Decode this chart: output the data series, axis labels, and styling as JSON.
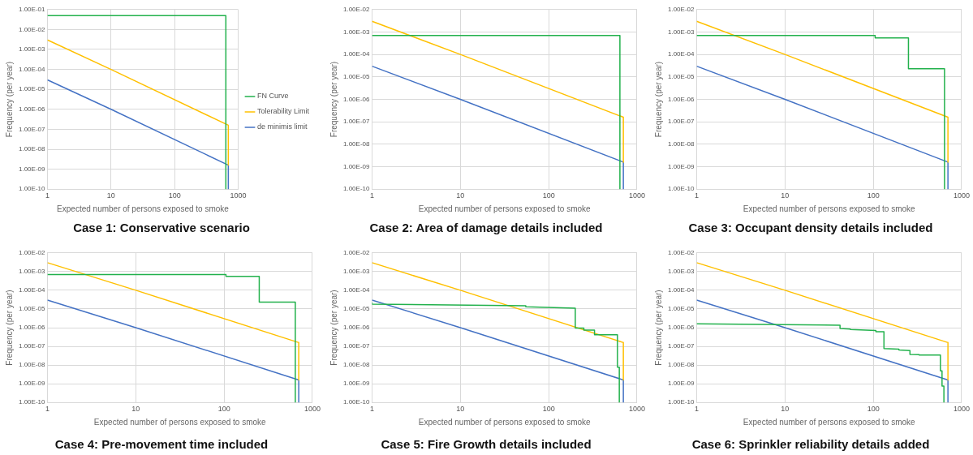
{
  "chart_data": [
    {
      "type": "line",
      "title": "Case 1: Conservative scenario",
      "xlabel": "Expected number of persons exposed to smoke",
      "ylabel": "Frequency (per year)",
      "log": "xy",
      "grid": true,
      "legend": "right",
      "marker": "none",
      "xlim": [
        1,
        1000
      ],
      "xticks": [
        1,
        10,
        100,
        1000
      ],
      "ylim": [
        1e-10,
        0.1
      ],
      "yticks": [
        {
          "value": 1e-10,
          "label": "1.00E-10"
        },
        {
          "value": 1e-09,
          "label": "1.00E-09"
        },
        {
          "value": 1e-08,
          "label": "1.00E-08"
        },
        {
          "value": 1e-07,
          "label": "1.00E-07"
        },
        {
          "value": 1e-06,
          "label": "1.00E-06"
        },
        {
          "value": 1e-05,
          "label": "1.00E-05"
        },
        {
          "value": 0.0001,
          "label": "1.00E-04"
        },
        {
          "value": 0.001,
          "label": "1.00E-03"
        },
        {
          "value": 0.01,
          "label": "1.00E-02"
        },
        {
          "value": 0.1,
          "label": "1.00E-01"
        }
      ],
      "series": [
        {
          "name": "FN Curve",
          "color": "#22b14c",
          "x": [
            1,
            640,
            640
          ],
          "values": [
            0.05,
            0.05,
            1e-10
          ]
        },
        {
          "name": "Tolerability Limit",
          "color": "#ffc000",
          "x": [
            1,
            10,
            700,
            700
          ],
          "values": [
            0.003,
            0.0001,
            1.6e-07,
            1.6e-09
          ]
        },
        {
          "name": "de minimis limit",
          "color": "#4472c4",
          "x": [
            1,
            10,
            700,
            700
          ],
          "values": [
            3e-05,
            1e-06,
            1.6e-09,
            1e-10
          ]
        }
      ]
    },
    {
      "type": "line",
      "title": "Case 2: Area of damage details included",
      "xlabel": "Expected number of persons exposed to smoke",
      "ylabel": "Frequency (per year)",
      "log": "xy",
      "grid": true,
      "marker": "none",
      "xlim": [
        1,
        1000
      ],
      "xticks": [
        1,
        10,
        100,
        1000
      ],
      "ylim": [
        1e-10,
        0.01
      ],
      "yticks": [
        {
          "value": 1e-10,
          "label": "1.00E-10"
        },
        {
          "value": 1e-09,
          "label": "1.00E-09"
        },
        {
          "value": 1e-08,
          "label": "1.00E-08"
        },
        {
          "value": 1e-07,
          "label": "1.00E-07"
        },
        {
          "value": 1e-06,
          "label": "1.00E-06"
        },
        {
          "value": 1e-05,
          "label": "1.00E-05"
        },
        {
          "value": 0.0001,
          "label": "1.00E-04"
        },
        {
          "value": 0.001,
          "label": "1.00E-03"
        },
        {
          "value": 0.01,
          "label": "1.00E-02"
        }
      ],
      "series": [
        {
          "color": "#22b14c",
          "x": [
            1,
            640,
            640
          ],
          "values": [
            0.0007,
            0.0007,
            1e-10
          ]
        },
        {
          "color": "#ffc000",
          "x": [
            1,
            10,
            700,
            700
          ],
          "values": [
            0.003,
            0.0001,
            1.6e-07,
            1.6e-09
          ]
        },
        {
          "color": "#4472c4",
          "x": [
            1,
            10,
            700,
            700
          ],
          "values": [
            3e-05,
            1e-06,
            1.6e-09,
            1e-10
          ]
        }
      ]
    },
    {
      "type": "line",
      "title": "Case 3: Occupant density details included",
      "xlabel": "Expected number of persons exposed to smoke",
      "ylabel": "Frequency (per year)",
      "log": "xy",
      "grid": true,
      "marker": "none",
      "xlim": [
        1,
        1000
      ],
      "xticks": [
        1,
        10,
        100,
        1000
      ],
      "ylim": [
        1e-10,
        0.01
      ],
      "yticks": [
        {
          "value": 1e-10,
          "label": "1.00E-10"
        },
        {
          "value": 1e-09,
          "label": "1.00E-09"
        },
        {
          "value": 1e-08,
          "label": "1.00E-08"
        },
        {
          "value": 1e-07,
          "label": "1.00E-07"
        },
        {
          "value": 1e-06,
          "label": "1.00E-06"
        },
        {
          "value": 1e-05,
          "label": "1.00E-05"
        },
        {
          "value": 0.0001,
          "label": "1.00E-04"
        },
        {
          "value": 0.001,
          "label": "1.00E-03"
        },
        {
          "value": 0.01,
          "label": "1.00E-02"
        }
      ],
      "series": [
        {
          "color": "#22b14c",
          "x": [
            1,
            105,
            105,
            250,
            250,
            640,
            640
          ],
          "values": [
            0.0007,
            0.0007,
            0.00055,
            0.00055,
            2.3e-05,
            2.3e-05,
            1e-10
          ]
        },
        {
          "color": "#ffc000",
          "x": [
            1,
            10,
            700,
            700
          ],
          "values": [
            0.003,
            0.0001,
            1.6e-07,
            1.6e-09
          ]
        },
        {
          "color": "#4472c4",
          "x": [
            1,
            10,
            700,
            700
          ],
          "values": [
            3e-05,
            1e-06,
            1.6e-09,
            1e-10
          ]
        }
      ]
    },
    {
      "type": "line",
      "title": "Case 4: Pre-movement time included",
      "xlabel": "Expected number of persons exposed to smoke",
      "ylabel": "Frequency (per year)",
      "log": "xy",
      "grid": true,
      "marker": "none",
      "xlim": [
        1,
        1000
      ],
      "xticks": [
        1,
        10,
        100,
        1000
      ],
      "ylim": [
        1e-10,
        0.01
      ],
      "yticks": [
        {
          "value": 1e-10,
          "label": "1.00E-10"
        },
        {
          "value": 1e-09,
          "label": "1.00E-09"
        },
        {
          "value": 1e-08,
          "label": "1.00E-08"
        },
        {
          "value": 1e-07,
          "label": "1.00E-07"
        },
        {
          "value": 1e-06,
          "label": "1.00E-06"
        },
        {
          "value": 1e-05,
          "label": "1.00E-05"
        },
        {
          "value": 0.0001,
          "label": "1.00E-04"
        },
        {
          "value": 0.001,
          "label": "1.00E-03"
        },
        {
          "value": 0.01,
          "label": "1.00E-02"
        }
      ],
      "series": [
        {
          "color": "#22b14c",
          "x": [
            1,
            105,
            105,
            250,
            250,
            640,
            640
          ],
          "values": [
            0.0007,
            0.0007,
            0.00055,
            0.00055,
            2.3e-05,
            2.3e-05,
            1e-10
          ]
        },
        {
          "color": "#ffc000",
          "x": [
            1,
            10,
            700,
            700
          ],
          "values": [
            0.003,
            0.0001,
            1.6e-07,
            1.6e-09
          ]
        },
        {
          "color": "#4472c4",
          "x": [
            1,
            10,
            700,
            700
          ],
          "values": [
            3e-05,
            1e-06,
            1.6e-09,
            1e-10
          ]
        }
      ]
    },
    {
      "type": "line",
      "title": "Case 5: Fire Growth details included",
      "xlabel": "Expected number of persons exposed to smoke",
      "ylabel": "Frequency (per year)",
      "log": "xy",
      "grid": true,
      "marker": "none",
      "xlim": [
        1,
        1000
      ],
      "xticks": [
        1,
        10,
        100,
        1000
      ],
      "ylim": [
        1e-10,
        0.01
      ],
      "yticks": [
        {
          "value": 1e-10,
          "label": "1.00E-10"
        },
        {
          "value": 1e-09,
          "label": "1.00E-09"
        },
        {
          "value": 1e-08,
          "label": "1.00E-08"
        },
        {
          "value": 1e-07,
          "label": "1.00E-07"
        },
        {
          "value": 1e-06,
          "label": "1.00E-06"
        },
        {
          "value": 1e-05,
          "label": "1.00E-05"
        },
        {
          "value": 0.0001,
          "label": "1.00E-04"
        },
        {
          "value": 0.001,
          "label": "1.00E-03"
        },
        {
          "value": 0.01,
          "label": "1.00E-02"
        }
      ],
      "series": [
        {
          "color": "#22b14c",
          "x": [
            1,
            1,
            55,
            55,
            200,
            200,
            250,
            250,
            330,
            330,
            600,
            600,
            630,
            630
          ],
          "values": [
            2.1e-05,
            1.8e-05,
            1.5e-05,
            1.3e-05,
            1.1e-05,
            9.4e-07,
            9.4e-07,
            7.5e-07,
            7.5e-07,
            4.2e-07,
            4.2e-07,
            7.7e-09,
            7.7e-09,
            1e-10
          ]
        },
        {
          "color": "#ffc000",
          "x": [
            1,
            10,
            700,
            700
          ],
          "values": [
            0.003,
            0.0001,
            1.6e-07,
            1.6e-09
          ]
        },
        {
          "color": "#4472c4",
          "x": [
            1,
            10,
            700,
            700
          ],
          "values": [
            3e-05,
            1e-06,
            1.6e-09,
            1e-10
          ]
        }
      ]
    },
    {
      "type": "line",
      "title": "Case 6: Sprinkler reliability details added",
      "xlabel": "Expected number of persons exposed to smoke",
      "ylabel": "Frequency (per year)",
      "log": "xy",
      "grid": true,
      "marker": "none",
      "xlim": [
        1,
        1000
      ],
      "xticks": [
        1,
        10,
        100,
        1000
      ],
      "ylim": [
        1e-10,
        0.01
      ],
      "yticks": [
        {
          "value": 1e-10,
          "label": "1.00E-10"
        },
        {
          "value": 1e-09,
          "label": "1.00E-09"
        },
        {
          "value": 1e-08,
          "label": "1.00E-08"
        },
        {
          "value": 1e-07,
          "label": "1.00E-07"
        },
        {
          "value": 1e-06,
          "label": "1.00E-06"
        },
        {
          "value": 1e-05,
          "label": "1.00E-05"
        },
        {
          "value": 0.0001,
          "label": "1.00E-04"
        },
        {
          "value": 0.001,
          "label": "1.00E-03"
        },
        {
          "value": 0.01,
          "label": "1.00E-02"
        }
      ],
      "series": [
        {
          "color": "#22b14c",
          "x": [
            1,
            42,
            42,
            55,
            55,
            107,
            107,
            132,
            132,
            195,
            195,
            260,
            260,
            330,
            330,
            575,
            575,
            600,
            600,
            630,
            630
          ],
          "values": [
            1.6e-06,
            1.35e-06,
            9e-07,
            8.5e-07,
            7.9e-07,
            7e-07,
            6e-07,
            6e-07,
            7.6e-08,
            7e-08,
            6.4e-08,
            6e-08,
            3.7e-08,
            3.6e-08,
            3.4e-08,
            3.4e-08,
            4.9e-09,
            4.9e-09,
            7.5e-10,
            7.5e-10,
            1e-10
          ]
        },
        {
          "color": "#ffc000",
          "x": [
            1,
            10,
            700,
            700
          ],
          "values": [
            0.003,
            0.0001,
            1.6e-07,
            1.6e-09
          ]
        },
        {
          "color": "#4472c4",
          "x": [
            1,
            10,
            700,
            700
          ],
          "values": [
            3e-05,
            1e-06,
            1.6e-09,
            1e-10
          ]
        }
      ]
    }
  ]
}
